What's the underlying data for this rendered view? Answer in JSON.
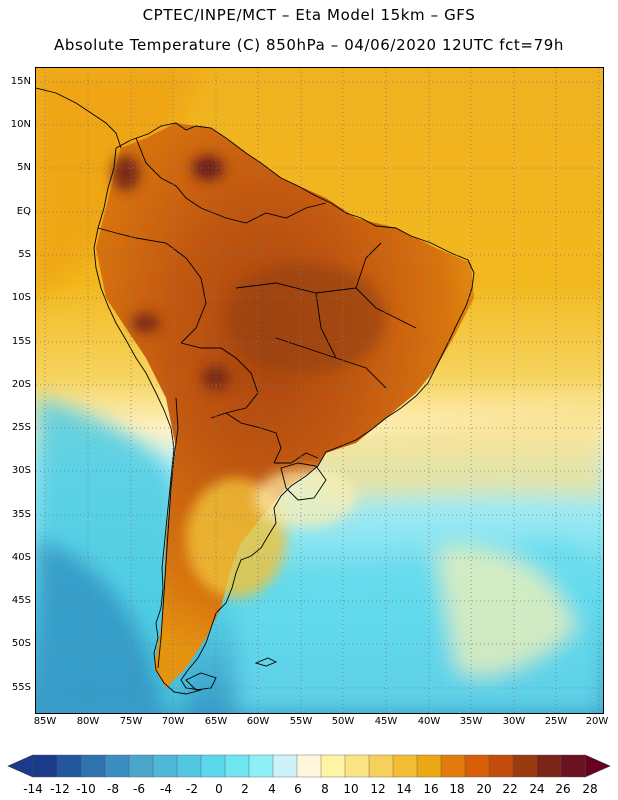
{
  "title_line1": "CPTEC/INPE/MCT –  Eta Model 15km – GFS",
  "title_line2": "Absolute Temperature (C) 850hPa – 04/06/2020 12UTC fct=79h",
  "lat_labels": [
    "15N",
    "10N",
    "5N",
    "EQ",
    "5S",
    "10S",
    "15S",
    "20S",
    "25S",
    "30S",
    "35S",
    "40S",
    "45S",
    "50S",
    "55S"
  ],
  "lon_labels": [
    "85W",
    "80W",
    "75W",
    "70W",
    "65W",
    "60W",
    "55W",
    "50W",
    "45W",
    "40W",
    "35W",
    "30W",
    "25W",
    "20W"
  ],
  "legend": {
    "values": [
      "-14",
      "-12",
      "-10",
      "-8",
      "-6",
      "-4",
      "-2",
      "0",
      "2",
      "4",
      "6",
      "8",
      "10",
      "12",
      "14",
      "16",
      "18",
      "20",
      "22",
      "24",
      "26",
      "28"
    ],
    "colors": [
      "#1a3b8c",
      "#23579e",
      "#2e72b0",
      "#3b8fc0",
      "#4aa6cc",
      "#4eb8d8",
      "#52c8e2",
      "#5cd8ec",
      "#6ee6f2",
      "#8ef0f6",
      "#cdf3f8",
      "#fff6dc",
      "#fff4a4",
      "#fbe484",
      "#f5d05a",
      "#f2bc33",
      "#eca812",
      "#e37c0c",
      "#d85e0a",
      "#c14c0c",
      "#9a3a0e",
      "#7a2418",
      "#6a1220"
    ],
    "low_arrow_color": "#1a3b8c",
    "high_arrow_color": "#6a0020"
  },
  "palette": {
    "ocean_tropical": "#f2ba20",
    "ocean_subtropical": "#f3c84a",
    "land_hot": "#cf6712",
    "land_very_hot": "#8e3513",
    "cool": "#5cd8ec",
    "cold": "#3b9ac6"
  }
}
